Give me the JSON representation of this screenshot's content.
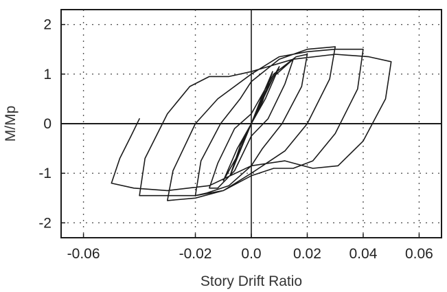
{
  "chart_data": {
    "type": "line",
    "title": "",
    "xlabel": "Story Drift Ratio",
    "ylabel": "M/Mp",
    "xlim": [
      -0.068,
      0.068
    ],
    "ylim": [
      -2.3,
      2.3
    ],
    "xticks": [
      -0.06,
      -0.02,
      0.0,
      0.02,
      0.04,
      0.06
    ],
    "xtick_labels": [
      "-0.06",
      "-0.02",
      "0.0",
      "0.02",
      "0.04",
      "0.06"
    ],
    "yticks": [
      -2,
      -1,
      0,
      1,
      2
    ],
    "ytick_labels": [
      "-2",
      "-1",
      "0",
      "1",
      "2"
    ],
    "grid": true,
    "grid_style": "dotted",
    "legend": "none",
    "line_color": "#1a1a1a",
    "series": [
      {
        "x": [
          0.0,
          0.0038,
          0.0076,
          0.004,
          0.0,
          -0.004,
          -0.0076,
          -0.004,
          0.0,
          0.005,
          0.01,
          0.005,
          0.0,
          -0.005,
          -0.01,
          -0.005,
          0.0,
          0.008,
          0.015,
          0.012,
          0.006,
          0.0,
          -0.006,
          -0.012,
          -0.015,
          -0.012,
          -0.006,
          0.0,
          0.008,
          0.016,
          0.02,
          0.018,
          0.011,
          0.004,
          0.0,
          -0.008,
          -0.016,
          -0.02,
          -0.018,
          -0.011,
          -0.004,
          0.0,
          0.01,
          0.02,
          0.03,
          0.028,
          0.02,
          0.012,
          0.0,
          -0.01,
          -0.02,
          -0.03,
          -0.028,
          -0.02,
          -0.012,
          0.0,
          0.01,
          0.02,
          0.03,
          0.04,
          0.038,
          0.03,
          0.022,
          0.015,
          0.008,
          0.0,
          -0.01,
          -0.02,
          -0.03,
          -0.04,
          -0.038,
          -0.03,
          -0.022,
          -0.015,
          -0.008,
          0.0,
          0.015,
          0.03,
          0.042,
          0.05,
          0.048,
          0.04,
          0.031,
          0.022,
          0.012,
          0.0,
          -0.015,
          -0.03,
          -0.042,
          -0.05,
          -0.047,
          -0.043,
          -0.04
        ],
        "y": [
          0.0,
          0.55,
          1.05,
          0.45,
          0.0,
          -0.55,
          -1.05,
          -0.45,
          0.0,
          0.65,
          1.15,
          0.5,
          0.0,
          -0.65,
          -1.15,
          -0.5,
          0.0,
          0.95,
          1.3,
          0.8,
          0.1,
          -0.25,
          -0.95,
          -1.3,
          -1.3,
          -0.8,
          -0.1,
          0.2,
          1.0,
          1.35,
          1.4,
          0.75,
          0.0,
          -0.5,
          -0.85,
          -1.25,
          -1.4,
          -1.45,
          -0.75,
          0.0,
          0.5,
          0.85,
          1.3,
          1.5,
          1.55,
          0.9,
          0.0,
          -0.55,
          -1.0,
          -1.35,
          -1.5,
          -1.55,
          -0.95,
          0.0,
          0.5,
          1.0,
          1.35,
          1.45,
          1.5,
          1.5,
          0.7,
          -0.2,
          -0.75,
          -0.9,
          -0.9,
          -1.05,
          -1.35,
          -1.45,
          -1.45,
          -1.45,
          -0.7,
          0.2,
          0.75,
          0.95,
          0.95,
          1.05,
          1.3,
          1.4,
          1.35,
          1.25,
          0.5,
          -0.35,
          -0.85,
          -0.9,
          -0.75,
          -0.85,
          -1.25,
          -1.35,
          -1.3,
          -1.2,
          -0.7,
          -0.25,
          0.1
        ]
      }
    ]
  }
}
